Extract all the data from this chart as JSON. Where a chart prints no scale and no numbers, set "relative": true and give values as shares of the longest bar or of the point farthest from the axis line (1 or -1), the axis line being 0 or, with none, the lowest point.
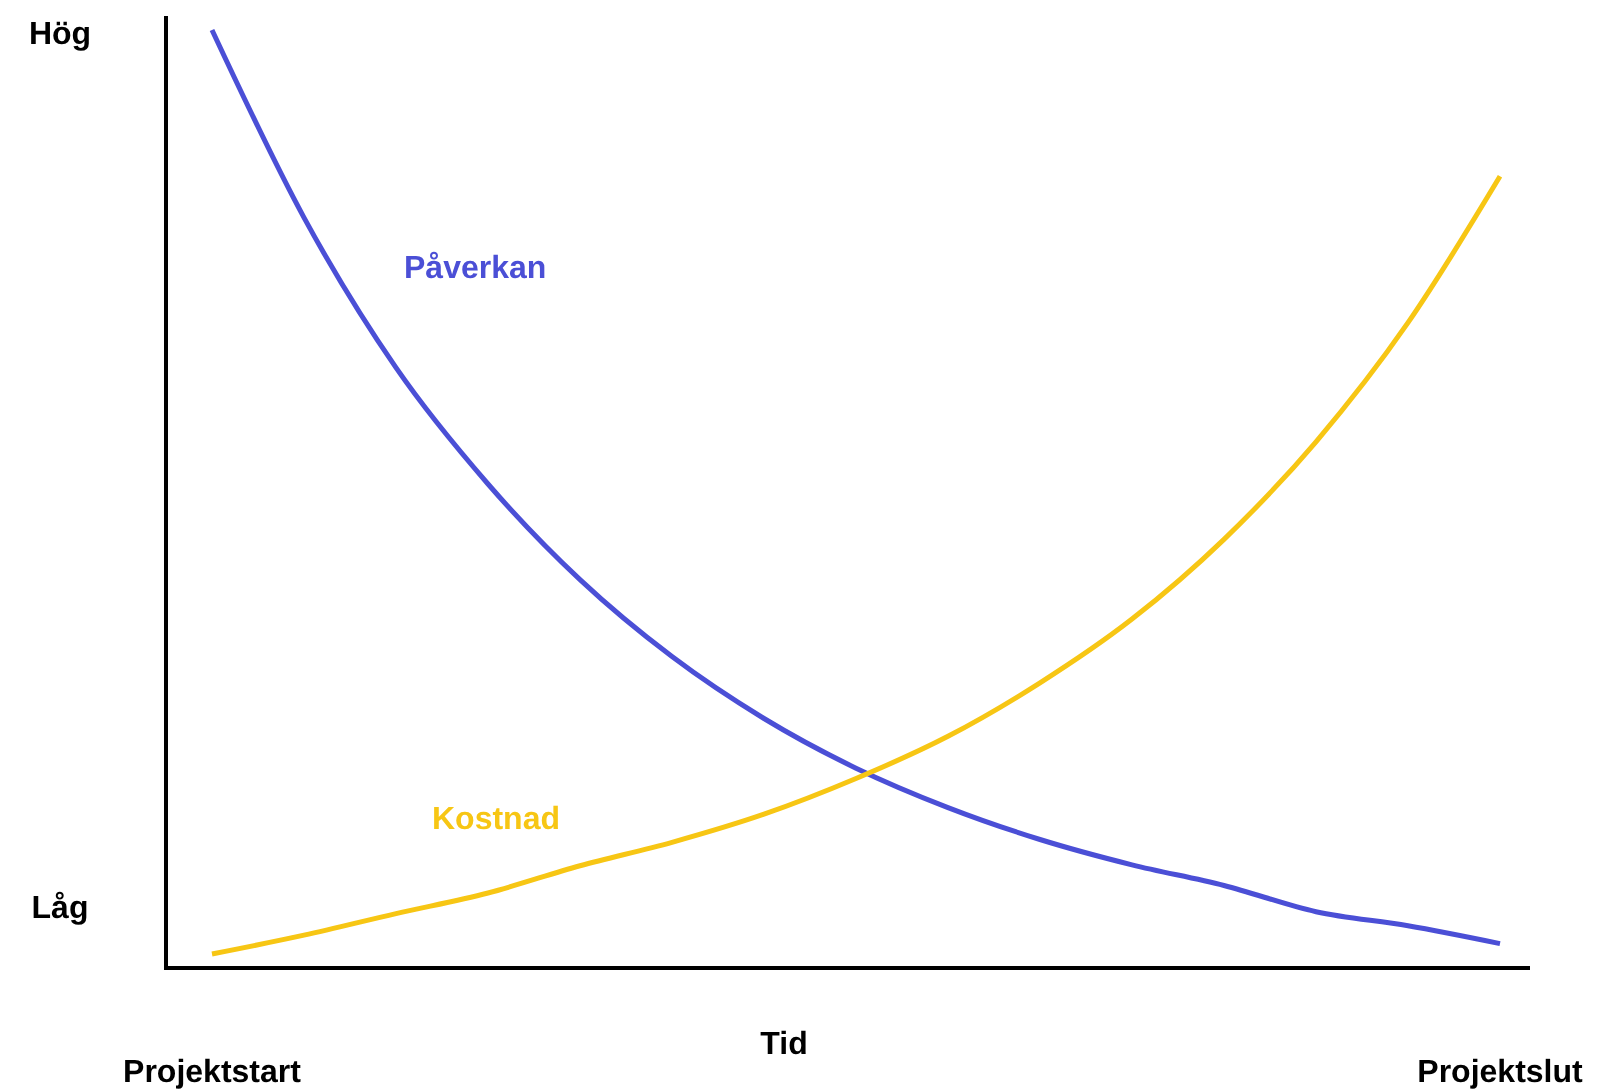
{
  "chart_data": {
    "type": "line",
    "relative": true,
    "xlabel": "Tid",
    "categories": [
      "Projektstart",
      null,
      null,
      null,
      null,
      null,
      null,
      null,
      null,
      null,
      null,
      null,
      null,
      null,
      "Projektslut"
    ],
    "series": [
      {
        "name": "Påverkan",
        "color": "#4b4fd6",
        "values": [
          1.0,
          0.8,
          0.64,
          0.516,
          0.414,
          0.332,
          0.266,
          0.213,
          0.171,
          0.137,
          0.11,
          0.088,
          0.06,
          0.045,
          0.026
        ]
      },
      {
        "name": "Kostnad",
        "color": "#f7c614",
        "values": [
          0.015,
          0.035,
          0.058,
          0.08,
          0.109,
          0.134,
          0.164,
          0.202,
          0.247,
          0.304,
          0.372,
          0.457,
          0.561,
          0.688,
          0.844
        ]
      }
    ],
    "annotations": [
      "Hög",
      "Låg"
    ],
    "legend": false,
    "marker": "none",
    "line_style": "solid",
    "grid": false
  }
}
